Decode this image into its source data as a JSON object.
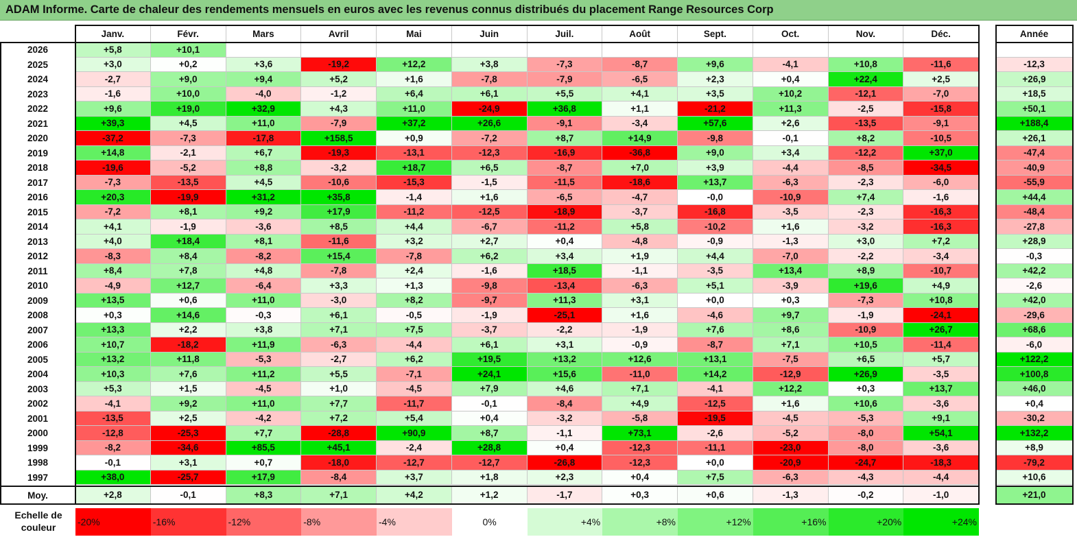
{
  "title": "ADAM Informe. Carte de chaleur des rendements mensuels en euros avec les revenus connus distribués du placement Range Resources Corp",
  "chart_data": {
    "type": "heatmap",
    "columns": [
      "Janv.",
      "Févr.",
      "Mars",
      "Avril",
      "Mai",
      "Juin",
      "Juil.",
      "Août",
      "Sept.",
      "Oct.",
      "Nov.",
      "Déc."
    ],
    "year_column": "Année",
    "avg_label": "Moy.",
    "rows": [
      {
        "year": "2026",
        "values": [
          "+5,8",
          "+10,1",
          "",
          "",
          "",
          "",
          "",
          "",
          "",
          "",
          "",
          ""
        ],
        "annual": ""
      },
      {
        "year": "2025",
        "values": [
          "+3,0",
          "+0,2",
          "+3,6",
          "-19,2",
          "+12,2",
          "+3,8",
          "-7,3",
          "-8,7",
          "+9,6",
          "-4,1",
          "+10,8",
          "-11,6"
        ],
        "annual": "-12,3"
      },
      {
        "year": "2024",
        "values": [
          "-2,7",
          "+9,0",
          "+9,4",
          "+5,2",
          "+1,6",
          "-7,8",
          "-7,9",
          "-6,5",
          "+2,3",
          "+0,4",
          "+22,4",
          "+2,5"
        ],
        "annual": "+26,9"
      },
      {
        "year": "2023",
        "values": [
          "-1,6",
          "+10,0",
          "-4,0",
          "-1,2",
          "+6,4",
          "+6,1",
          "+5,5",
          "+4,1",
          "+3,5",
          "+10,2",
          "-12,1",
          "-7,0"
        ],
        "annual": "+18,5"
      },
      {
        "year": "2022",
        "values": [
          "+9,6",
          "+19,0",
          "+32,9",
          "+4,3",
          "+11,0",
          "-24,9",
          "+36,8",
          "+1,1",
          "-21,2",
          "+11,3",
          "-2,5",
          "-15,8"
        ],
        "annual": "+50,1"
      },
      {
        "year": "2021",
        "values": [
          "+39,3",
          "+4,5",
          "+11,0",
          "-7,9",
          "+37,2",
          "+26,6",
          "-9,1",
          "-3,4",
          "+57,6",
          "+2,6",
          "-13,5",
          "-9,1"
        ],
        "annual": "+188,4"
      },
      {
        "year": "2020",
        "values": [
          "-37,2",
          "-7,3",
          "-17,8",
          "+158,5",
          "+0,9",
          "-7,2",
          "+8,7",
          "+14,9",
          "-9,8",
          "-0,1",
          "+8,2",
          "-10,5"
        ],
        "annual": "+26,1"
      },
      {
        "year": "2019",
        "values": [
          "+14,8",
          "-2,1",
          "+6,7",
          "-19,3",
          "-13,1",
          "-12,3",
          "-16,9",
          "-36,8",
          "+9,0",
          "+3,4",
          "-12,2",
          "+37,0"
        ],
        "annual": "-47,4"
      },
      {
        "year": "2018",
        "values": [
          "-19,6",
          "-5,2",
          "+8,8",
          "-3,2",
          "+18,7",
          "+6,5",
          "-8,7",
          "+7,0",
          "+3,9",
          "-4,4",
          "-8,5",
          "-34,5"
        ],
        "annual": "-40,9"
      },
      {
        "year": "2017",
        "values": [
          "-7,3",
          "-13,5",
          "+4,5",
          "-10,6",
          "-15,3",
          "-1,5",
          "-11,5",
          "-18,6",
          "+13,7",
          "-6,3",
          "-2,3",
          "-6,0"
        ],
        "annual": "-55,9"
      },
      {
        "year": "2016",
        "values": [
          "+20,3",
          "-19,9",
          "+31,2",
          "+35,8",
          "-1,4",
          "+1,6",
          "-6,5",
          "-4,7",
          "-0,0",
          "-10,9",
          "+7,4",
          "-1,6"
        ],
        "annual": "+44,4"
      },
      {
        "year": "2015",
        "values": [
          "-7,2",
          "+8,1",
          "+9,2",
          "+17,9",
          "-11,2",
          "-12,5",
          "-18,9",
          "-3,7",
          "-16,8",
          "-3,5",
          "-2,3",
          "-16,3"
        ],
        "annual": "-48,4"
      },
      {
        "year": "2014",
        "values": [
          "+4,1",
          "-1,9",
          "-3,6",
          "+8,5",
          "+4,4",
          "-6,7",
          "-11,2",
          "+5,8",
          "-10,2",
          "+1,6",
          "-3,2",
          "-16,3"
        ],
        "annual": "-27,8"
      },
      {
        "year": "2013",
        "values": [
          "+4,0",
          "+18,4",
          "+8,1",
          "-11,6",
          "+3,2",
          "+2,7",
          "+0,4",
          "-4,8",
          "-0,9",
          "-1,3",
          "+3,0",
          "+7,2"
        ],
        "annual": "+28,9"
      },
      {
        "year": "2012",
        "values": [
          "-8,3",
          "+8,4",
          "-8,2",
          "+15,4",
          "-7,8",
          "+6,2",
          "+3,4",
          "+1,9",
          "+4,4",
          "-7,0",
          "-2,2",
          "-3,4"
        ],
        "annual": "-0,3"
      },
      {
        "year": "2011",
        "values": [
          "+8,4",
          "+7,8",
          "+4,8",
          "-7,8",
          "+2,4",
          "-1,6",
          "+18,5",
          "-1,1",
          "-3,5",
          "+13,4",
          "+8,9",
          "-10,7"
        ],
        "annual": "+42,2"
      },
      {
        "year": "2010",
        "values": [
          "-4,9",
          "+12,7",
          "-6,4",
          "+3,3",
          "+1,3",
          "-9,8",
          "-13,4",
          "-6,3",
          "+5,1",
          "-3,9",
          "+19,6",
          "+4,9"
        ],
        "annual": "-2,6"
      },
      {
        "year": "2009",
        "values": [
          "+13,5",
          "+0,6",
          "+11,0",
          "-3,0",
          "+8,2",
          "-9,7",
          "+11,3",
          "+3,1",
          "+0,0",
          "+0,3",
          "-7,3",
          "+10,8"
        ],
        "annual": "+42,0"
      },
      {
        "year": "2008",
        "values": [
          "+0,3",
          "+14,6",
          "-0,3",
          "+6,1",
          "-0,5",
          "-1,9",
          "-25,1",
          "+1,6",
          "-4,6",
          "+9,7",
          "-1,9",
          "-24,1"
        ],
        "annual": "-29,6"
      },
      {
        "year": "2007",
        "values": [
          "+13,3",
          "+2,2",
          "+3,8",
          "+7,1",
          "+7,5",
          "-3,7",
          "-2,2",
          "-1,9",
          "+7,6",
          "+8,6",
          "-10,9",
          "+26,7"
        ],
        "annual": "+68,6"
      },
      {
        "year": "2006",
        "values": [
          "+10,7",
          "-18,2",
          "+11,9",
          "-6,3",
          "-4,4",
          "+6,1",
          "+3,1",
          "-0,9",
          "-8,7",
          "+7,1",
          "+10,5",
          "-11,4"
        ],
        "annual": "-6,0"
      },
      {
        "year": "2005",
        "values": [
          "+13,2",
          "+11,8",
          "-5,3",
          "-2,7",
          "+6,2",
          "+19,5",
          "+13,2",
          "+12,6",
          "+13,1",
          "-7,5",
          "+6,5",
          "+5,7"
        ],
        "annual": "+122,2"
      },
      {
        "year": "2004",
        "values": [
          "+10,3",
          "+7,6",
          "+11,2",
          "+5,5",
          "-7,1",
          "+24,1",
          "+15,6",
          "-11,0",
          "+14,2",
          "-12,9",
          "+26,9",
          "-3,5"
        ],
        "annual": "+100,8"
      },
      {
        "year": "2003",
        "values": [
          "+5,3",
          "+1,5",
          "-4,5",
          "+1,0",
          "-4,5",
          "+7,9",
          "+4,6",
          "+7,1",
          "-4,1",
          "+12,2",
          "+0,3",
          "+13,7"
        ],
        "annual": "+46,0"
      },
      {
        "year": "2002",
        "values": [
          "-4,1",
          "+9,2",
          "+11,0",
          "+7,7",
          "-11,7",
          "-0,1",
          "-8,4",
          "+4,9",
          "-12,5",
          "+1,6",
          "+10,6",
          "-3,6"
        ],
        "annual": "+0,4"
      },
      {
        "year": "2001",
        "values": [
          "-13,5",
          "+2,5",
          "-4,2",
          "+7,2",
          "+5,4",
          "+0,4",
          "-3,2",
          "-5,8",
          "-19,5",
          "-4,5",
          "-5,3",
          "+9,1"
        ],
        "annual": "-30,2"
      },
      {
        "year": "2000",
        "values": [
          "-12,8",
          "-25,3",
          "+7,7",
          "-28,8",
          "+90,9",
          "+8,7",
          "-1,1",
          "+73,1",
          "-2,6",
          "-5,2",
          "-8,0",
          "+54,1"
        ],
        "annual": "+132,2"
      },
      {
        "year": "1999",
        "values": [
          "-8,2",
          "-34,6",
          "+85,5",
          "+45,1",
          "-2,4",
          "+28,8",
          "+0,4",
          "-12,3",
          "-11,1",
          "-23,0",
          "-8,0",
          "-3,6"
        ],
        "annual": "+8,9"
      },
      {
        "year": "1998",
        "values": [
          "-0,1",
          "+3,1",
          "+0,7",
          "-18,0",
          "-12,7",
          "-12,7",
          "-26,8",
          "-12,3",
          "+0,0",
          "-20,9",
          "-24,7",
          "-18,3"
        ],
        "annual": "-79,2"
      },
      {
        "year": "1997",
        "values": [
          "+38,0",
          "-25,7",
          "+17,9",
          "-8,4",
          "+3,7",
          "+1,8",
          "+2,3",
          "+0,4",
          "+7,5",
          "-6,3",
          "-4,3",
          "-4,4"
        ],
        "annual": "+10,6"
      }
    ],
    "average": {
      "values": [
        "+2,8",
        "-0,1",
        "+8,3",
        "+7,1",
        "+4,2",
        "+1,2",
        "-1,7",
        "+0,3",
        "+0,6",
        "-1,3",
        "-0,2",
        "-1,0"
      ],
      "annual": "+21,0"
    },
    "scale": {
      "label": "Echelle de couleur",
      "items": [
        "-20%",
        "-16%",
        "-12%",
        "-8%",
        "-4%",
        "0%",
        "+4%",
        "+8%",
        "+12%",
        "+16%",
        "+20%",
        "+24%"
      ]
    },
    "colors": {
      "negative_max": "#ff0000",
      "neutral": "#ffffff",
      "positive_max": "#00e600"
    }
  }
}
